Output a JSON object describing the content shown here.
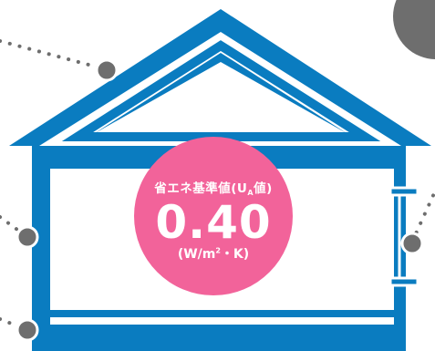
{
  "badge": {
    "label_prefix": "省エネ基準値(U",
    "label_sub": "A",
    "label_suffix": "値)",
    "value": "0.40",
    "unit_prefix": "(W/m",
    "unit_sup": "2",
    "unit_suffix": "・K)"
  },
  "colors": {
    "house_blue": "#0a7cc0",
    "badge_pink": "#f2639a",
    "node_gray": "#6e6e6e",
    "background": "#ffffff"
  }
}
